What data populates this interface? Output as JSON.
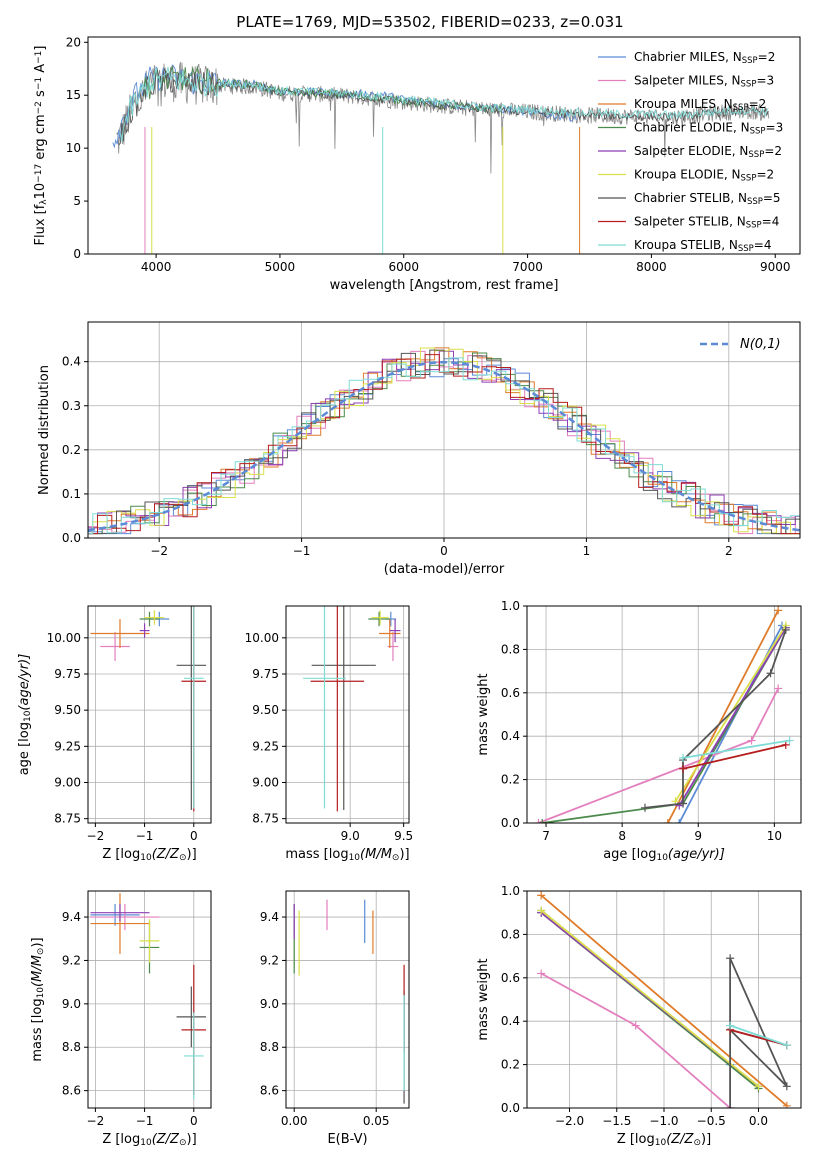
{
  "figure": {
    "title": "PLATE=1769, MJD=53502, FIBERID=0233, z=0.031"
  },
  "model_legend": [
    {
      "name": "Chabrier MILES, N",
      "sub": "SSP",
      "suffix": "=2",
      "color": "#5b8bd6"
    },
    {
      "name": "Salpeter MILES, N",
      "sub": "SSP",
      "suffix": "=3",
      "color": "#e37fbd"
    },
    {
      "name": "Kroupa MILES, N",
      "sub": "SSP",
      "suffix": "=2",
      "color": "#e07b2a"
    },
    {
      "name": "Chabrier ELODIE, N",
      "sub": "SSP",
      "suffix": "=3",
      "color": "#4c8a4c"
    },
    {
      "name": "Salpeter ELODIE, N",
      "sub": "SSP",
      "suffix": "=2",
      "color": "#8e3fb5"
    },
    {
      "name": "Kroupa ELODIE, N",
      "sub": "SSP",
      "suffix": "=2",
      "color": "#d9e04a"
    },
    {
      "name": "Chabrier STELIB, N",
      "sub": "SSP",
      "suffix": "=5",
      "color": "#555555"
    },
    {
      "name": "Salpeter STELIB, N",
      "sub": "SSP",
      "suffix": "=4",
      "color": "#b51f1f"
    },
    {
      "name": "Kroupa STELIB, N",
      "sub": "SSP",
      "suffix": "=4",
      "color": "#7fdbd5"
    }
  ],
  "chart_data": [
    {
      "id": "spectrum",
      "type": "line",
      "xlabel": "wavelength [Angstrom, rest frame]",
      "ylabel_parts": [
        "Flux [f",
        "λ",
        "10",
        "−17",
        " erg cm",
        "−2",
        " s",
        "−1",
        " A",
        "−1",
        "]"
      ],
      "xlim": [
        3450,
        9200
      ],
      "ylim": [
        0,
        20.5
      ],
      "xticks": [
        4000,
        5000,
        6000,
        7000,
        8000,
        9000
      ],
      "yticks": [
        0,
        5,
        10,
        15,
        20
      ],
      "data_color": "#888888",
      "series": [
        {
          "model": "Chabrier MILES",
          "x": [
            3650,
            3700,
            3800,
            3950,
            4100,
            4300,
            4500,
            4800,
            5000,
            5300,
            5500,
            5800,
            6000,
            6300,
            6600,
            6800,
            7000,
            7200,
            7400
          ],
          "y": [
            10.5,
            11.8,
            14.5,
            16.5,
            16.8,
            16.3,
            16.2,
            16.0,
            15.4,
            15.3,
            15.1,
            15.1,
            14.6,
            14.2,
            13.9,
            13.7,
            13.4,
            13.1,
            12.9
          ]
        },
        {
          "model": "Chabrier ELODIE",
          "x": [
            3900,
            4000,
            4200,
            4500,
            4800,
            5000,
            5300,
            5600,
            6000,
            6300,
            6600,
            6800
          ],
          "y": [
            15.5,
            16.3,
            16.6,
            16.2,
            16.0,
            15.3,
            15.2,
            15.0,
            14.5,
            14.1,
            13.8,
            13.6
          ]
        },
        {
          "model": "Chabrier STELIB",
          "x": [
            3700,
            3800,
            3950,
            4100,
            4300,
            4500,
            4800,
            5000,
            5300,
            5600,
            6000,
            6300,
            6600,
            6900,
            7200,
            7500,
            7800,
            8000,
            8200,
            8400,
            8600,
            8800,
            8950
          ],
          "y": [
            10.8,
            13.5,
            16.0,
            16.4,
            16.0,
            15.9,
            15.8,
            15.2,
            15.1,
            14.9,
            14.4,
            14.0,
            13.7,
            13.5,
            13.3,
            13.1,
            13.0,
            13.0,
            12.9,
            13.2,
            13.4,
            13.5,
            13.3
          ]
        },
        {
          "model": "Kroupa STELIB",
          "x": [
            3700,
            3800,
            3950,
            4100,
            4300,
            4500,
            4800,
            5000,
            5300,
            5600,
            6000,
            6300,
            6600,
            6900,
            7200,
            7500,
            7800,
            8000,
            8200,
            8400,
            8600,
            8800,
            8950
          ],
          "y": [
            11.0,
            13.8,
            16.3,
            16.6,
            16.2,
            16.1,
            16.0,
            15.4,
            15.3,
            15.1,
            14.6,
            14.3,
            13.9,
            13.7,
            13.5,
            13.3,
            13.2,
            13.2,
            13.1,
            13.3,
            13.5,
            13.6,
            13.4
          ]
        }
      ]
    },
    {
      "id": "residuals",
      "type": "step",
      "xlabel": "(data-model)/error",
      "ylabel": "Normed distribution",
      "xlim": [
        -2.5,
        2.5
      ],
      "ylim": [
        0,
        0.49
      ],
      "xticks": [
        -2,
        -1,
        0,
        1,
        2
      ],
      "yticks": [
        0.0,
        0.1,
        0.2,
        0.3,
        0.4
      ],
      "grid": true,
      "legend_label": "N(0,1)",
      "gaussian": {
        "mean": 0,
        "sigma": 1,
        "color": "#5b8bd6",
        "style": "dashed"
      }
    },
    {
      "id": "age_vs_Z",
      "type": "errorbar",
      "xlabel_parts": [
        "Z [log",
        "10",
        "(Z/Z",
        "⊙",
        ")]"
      ],
      "ylabel_parts": [
        "age  [log",
        "10",
        "(age/yr)]"
      ],
      "xlim": [
        -2.15,
        0.35
      ],
      "ylim": [
        8.72,
        10.22
      ],
      "xticks": [
        -2,
        -1,
        0
      ],
      "yticks": [
        8.75,
        9.0,
        9.25,
        9.5,
        9.75,
        10.0
      ],
      "grid": true,
      "points": [
        {
          "model": "Chabrier MILES",
          "x": -0.7,
          "xerr": 0.2,
          "y": 10.13,
          "yerr": 0.05
        },
        {
          "model": "Salpeter MILES",
          "x": -1.6,
          "xerr": 0.3,
          "y": 9.94,
          "yerr": 0.1
        },
        {
          "model": "Kroupa MILES",
          "x": -1.5,
          "xerr": 0.6,
          "y": 10.03,
          "yerr": 0.1
        },
        {
          "model": "Chabrier ELODIE",
          "x": -0.9,
          "xerr": 0.2,
          "y": 10.13,
          "yerr": 0.05
        },
        {
          "model": "Salpeter ELODIE",
          "x": -1.0,
          "xerr": 0.1,
          "y": 10.05,
          "yerr": 0.05
        },
        {
          "model": "Kroupa ELODIE",
          "x": -0.8,
          "xerr": 0.2,
          "y": 10.14,
          "yerr": 0.05
        },
        {
          "model": "Chabrier STELIB",
          "x": -0.05,
          "xerr": 0.3,
          "y": 9.81,
          "yerr": 1.0
        },
        {
          "model": "Salpeter STELIB",
          "x": 0.0,
          "xerr": 0.25,
          "y": 9.7,
          "yerr": 0.9
        },
        {
          "model": "Kroupa STELIB",
          "x": 0.0,
          "xerr": 0.2,
          "y": 9.72,
          "yerr": 0.9
        }
      ]
    },
    {
      "id": "age_vs_mass",
      "type": "errorbar",
      "xlabel_parts": [
        "mass [log",
        "10",
        "(M/M",
        "⊙",
        ")]"
      ],
      "xlim": [
        8.4,
        9.55
      ],
      "ylim": [
        8.72,
        10.22
      ],
      "xticks": [
        9.0,
        9.5
      ],
      "yticks": [
        8.75,
        9.0,
        9.25,
        9.5,
        9.75,
        10.0
      ],
      "grid": true,
      "points": [
        {
          "model": "Chabrier MILES",
          "x": 9.38,
          "xerr": 0.05,
          "y": 10.13,
          "yerr": 0.05
        },
        {
          "model": "Salpeter MILES",
          "x": 9.4,
          "xerr": 0.05,
          "y": 9.94,
          "yerr": 0.1
        },
        {
          "model": "Kroupa MILES",
          "x": 9.37,
          "xerr": 0.1,
          "y": 10.03,
          "yerr": 0.1
        },
        {
          "model": "Chabrier ELODIE",
          "x": 9.27,
          "xerr": 0.1,
          "y": 10.13,
          "yerr": 0.05
        },
        {
          "model": "Salpeter ELODIE",
          "x": 9.42,
          "xerr": 0.05,
          "y": 10.05,
          "yerr": 0.08
        },
        {
          "model": "Kroupa ELODIE",
          "x": 9.28,
          "xerr": 0.08,
          "y": 10.14,
          "yerr": 0.05
        },
        {
          "model": "Chabrier STELIB",
          "x": 8.94,
          "xerr": 0.3,
          "y": 9.81,
          "yerr": 1.0
        },
        {
          "model": "Salpeter STELIB",
          "x": 8.88,
          "xerr": 0.25,
          "y": 9.7,
          "yerr": 0.9
        },
        {
          "model": "Kroupa STELIB",
          "x": 8.76,
          "xerr": 0.2,
          "y": 9.72,
          "yerr": 0.9
        }
      ]
    },
    {
      "id": "weight_vs_age",
      "type": "line",
      "xlabel_parts": [
        "age  [log",
        "10",
        "(age/yr)]"
      ],
      "ylabel": "mass weight",
      "xlim": [
        6.75,
        10.35
      ],
      "ylim": [
        0,
        1.0
      ],
      "xticks": [
        7,
        8,
        9,
        10
      ],
      "yticks": [
        0.0,
        0.2,
        0.4,
        0.6,
        0.8,
        1.0
      ],
      "grid": true,
      "series": [
        {
          "model": "Chabrier MILES",
          "x": [
            8.75,
            10.1
          ],
          "y": [
            0.0,
            0.91
          ]
        },
        {
          "model": "Salpeter MILES",
          "x": [
            6.9,
            9.7,
            10.05
          ],
          "y": [
            0.0,
            0.38,
            0.62
          ]
        },
        {
          "model": "Kroupa MILES",
          "x": [
            8.6,
            10.05
          ],
          "y": [
            0.0,
            0.98
          ]
        },
        {
          "model": "Chabrier ELODIE",
          "x": [
            6.95,
            8.8,
            10.15
          ],
          "y": [
            0.0,
            0.09,
            0.9
          ]
        },
        {
          "model": "Salpeter ELODIE",
          "x": [
            8.75,
            10.15
          ],
          "y": [
            0.08,
            0.9
          ]
        },
        {
          "model": "Kroupa ELODIE",
          "x": [
            8.7,
            10.15
          ],
          "y": [
            0.1,
            0.91
          ]
        },
        {
          "model": "Chabrier STELIB",
          "x": [
            8.3,
            8.8,
            8.8,
            9.95,
            10.15
          ],
          "y": [
            0.07,
            0.09,
            0.29,
            0.69,
            0.89
          ]
        },
        {
          "model": "Salpeter STELIB",
          "x": [
            8.8,
            10.15
          ],
          "y": [
            0.25,
            0.36
          ]
        },
        {
          "model": "Kroupa STELIB",
          "x": [
            8.8,
            10.2
          ],
          "y": [
            0.3,
            0.38
          ]
        }
      ]
    },
    {
      "id": "mass_vs_Z",
      "type": "errorbar",
      "xlabel_parts": [
        "Z [log",
        "10",
        "(Z/Z",
        "⊙",
        ")]"
      ],
      "ylabel_parts": [
        "mass [log",
        "10",
        "(M/M",
        "⊙",
        ")]"
      ],
      "xlim": [
        -2.15,
        0.35
      ],
      "ylim": [
        8.52,
        9.52
      ],
      "xticks": [
        -2,
        -1,
        0
      ],
      "yticks": [
        8.6,
        8.8,
        9.0,
        9.2,
        9.4
      ],
      "grid": true,
      "points": [
        {
          "model": "Chabrier MILES",
          "x": -1.6,
          "xerr": 0.5,
          "y": 9.41,
          "yerr": 0.05
        },
        {
          "model": "Salpeter MILES",
          "x": -1.4,
          "xerr": 0.7,
          "y": 9.4,
          "yerr": 0.06
        },
        {
          "model": "Kroupa MILES",
          "x": -1.5,
          "xerr": 0.6,
          "y": 9.37,
          "yerr": 0.14
        },
        {
          "model": "Chabrier ELODIE",
          "x": -0.9,
          "xerr": 0.2,
          "y": 9.26,
          "yerr": 0.12
        },
        {
          "model": "Salpeter ELODIE",
          "x": -1.5,
          "xerr": 0.6,
          "y": 9.42,
          "yerr": 0.04
        },
        {
          "model": "Kroupa ELODIE",
          "x": -0.9,
          "xerr": 0.2,
          "y": 9.29,
          "yerr": 0.1
        },
        {
          "model": "Chabrier STELIB",
          "x": -0.05,
          "xerr": 0.3,
          "y": 8.94,
          "yerr": 0.14
        },
        {
          "model": "Salpeter STELIB",
          "x": 0.0,
          "xerr": 0.25,
          "y": 8.88,
          "yerr": 0.3
        },
        {
          "model": "Kroupa STELIB",
          "x": 0.0,
          "xerr": 0.2,
          "y": 8.76,
          "yerr": 0.2
        }
      ]
    },
    {
      "id": "mass_vs_ebv",
      "type": "errorbar",
      "xlabel": "E(B-V)",
      "xlim": [
        -0.005,
        0.07
      ],
      "ylim": [
        8.52,
        9.52
      ],
      "xticks": [
        0.0,
        0.05
      ],
      "yticks": [
        8.6,
        8.8,
        9.0,
        9.2,
        9.4
      ],
      "grid": true,
      "points": [
        {
          "model": "Chabrier MILES",
          "x": 0.043,
          "y": 9.38,
          "yerr": 0.1
        },
        {
          "model": "Salpeter MILES",
          "x": 0.02,
          "y": 9.41,
          "yerr": 0.07
        },
        {
          "model": "Kroupa MILES",
          "x": 0.048,
          "y": 9.33,
          "yerr": 0.1
        },
        {
          "model": "Chabrier ELODIE",
          "x": 0.0,
          "y": 9.3,
          "yerr": 0.16
        },
        {
          "model": "Salpeter ELODIE",
          "x": 0.0,
          "y": 9.38,
          "yerr": 0.08
        },
        {
          "model": "Kroupa ELODIE",
          "x": 0.003,
          "y": 9.28,
          "yerr": 0.15
        },
        {
          "model": "Chabrier STELIB",
          "x": 0.067,
          "y": 8.8,
          "yerr": 0.26
        },
        {
          "model": "Salpeter STELIB",
          "x": 0.067,
          "y": 8.98,
          "yerr": 0.2
        },
        {
          "model": "Kroupa STELIB",
          "x": 0.067,
          "y": 8.82,
          "yerr": 0.22
        }
      ]
    },
    {
      "id": "weight_vs_Z",
      "type": "line",
      "xlabel_parts": [
        "Z [log",
        "10",
        "(Z/Z",
        "⊙",
        ")]"
      ],
      "ylabel": "mass weight",
      "xlim": [
        -2.45,
        0.45
      ],
      "ylim": [
        0,
        1.0
      ],
      "xticks": [
        -2.0,
        -1.5,
        -1.0,
        -0.5,
        0.0
      ],
      "yticks": [
        0.0,
        0.2,
        0.4,
        0.6,
        0.8,
        1.0
      ],
      "grid": true,
      "series": [
        {
          "model": "Chabrier MILES",
          "x": [
            -2.3,
            -0.3
          ],
          "y": [
            0.91,
            0.2
          ]
        },
        {
          "model": "Salpeter MILES",
          "x": [
            -2.3,
            -1.3,
            -0.3
          ],
          "y": [
            0.62,
            0.38,
            0.0
          ]
        },
        {
          "model": "Kroupa MILES",
          "x": [
            -2.3,
            0.3
          ],
          "y": [
            0.98,
            0.01
          ]
        },
        {
          "model": "Chabrier ELODIE",
          "x": [
            -2.3,
            0.0
          ],
          "y": [
            0.9,
            0.09
          ]
        },
        {
          "model": "Salpeter ELODIE",
          "x": [
            -2.3,
            0.0
          ],
          "y": [
            0.9,
            0.1
          ]
        },
        {
          "model": "Kroupa ELODIE",
          "x": [
            -2.3,
            0.0
          ],
          "y": [
            0.91,
            0.1
          ]
        },
        {
          "model": "Chabrier STELIB",
          "x": [
            -0.3,
            -0.3,
            0.3,
            -0.3,
            0.3
          ],
          "y": [
            0.0,
            0.69,
            0.1,
            0.36,
            0.29
          ]
        },
        {
          "model": "Salpeter STELIB",
          "x": [
            -0.3,
            0.3
          ],
          "y": [
            0.36,
            0.29
          ]
        },
        {
          "model": "Kroupa STELIB",
          "x": [
            -0.3,
            0.3
          ],
          "y": [
            0.38,
            0.29
          ]
        }
      ]
    }
  ]
}
